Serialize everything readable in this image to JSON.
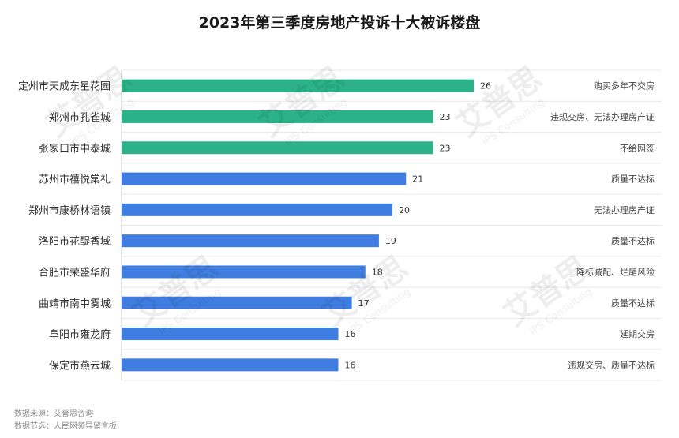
{
  "chart_data": {
    "type": "bar",
    "orientation": "horizontal",
    "title": "2023年第三季度房地产投诉十大被诉楼盘",
    "categories": [
      "定州市天成东星花园",
      "郑州市孔雀城",
      "张家口市中泰城",
      "苏州市禧悦棠礼",
      "郑州市康桥林语镇",
      "洛阳市花醍香域",
      "合肥市荣盛华府",
      "曲靖市南中雾城",
      "阜阳市雍龙府",
      "保定市燕云城"
    ],
    "values": [
      26,
      23,
      23,
      21,
      20,
      19,
      18,
      17,
      16,
      16
    ],
    "complaint_reasons": [
      "购买多年不交房",
      "违规交房、无法办理房产证",
      "不给网签",
      "质量不达标",
      "无法办理房产证",
      "质量不达标",
      "降标减配、烂尾风险",
      "质量不达标",
      "延期交房",
      "违规交房、质量不达标"
    ],
    "highlight_count": 3,
    "colors": {
      "highlight": "#2bb288",
      "normal": "#3f7ee0",
      "grid": "#e8e8e8",
      "axis": "#cccccc"
    },
    "xlim": [
      0,
      60
    ],
    "grid": true,
    "legend": "none"
  },
  "source": {
    "line1": "数据来源：艾普思咨询",
    "line2": "数据节选：人民网领导留言板"
  },
  "watermark": {
    "text": "艾普思",
    "subtext": "iPS Consulting"
  }
}
